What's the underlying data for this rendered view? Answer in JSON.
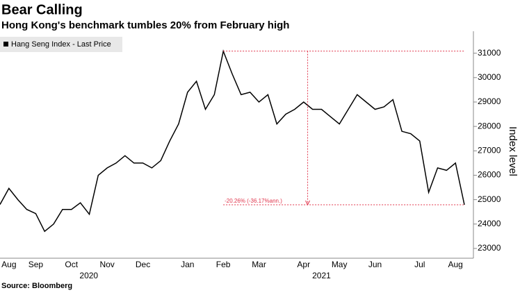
{
  "chart_data": {
    "type": "line",
    "title": "Bear Calling",
    "subtitle": "Hong Kong's benchmark tumbles 20% from February high",
    "y_label": "Index level",
    "source": "Source: Bloomberg",
    "annotation": "-20.26% (-36.17%ann.)",
    "year_labels": [
      "2020",
      "2021"
    ],
    "categories": [
      null,
      "Aug",
      null,
      null,
      "Sep",
      null,
      null,
      null,
      "Oct",
      null,
      null,
      null,
      "Nov",
      null,
      null,
      null,
      "Dec",
      null,
      null,
      null,
      null,
      "Jan",
      null,
      null,
      null,
      "Feb",
      null,
      null,
      null,
      "Mar",
      null,
      null,
      null,
      null,
      "Apr",
      null,
      null,
      null,
      "May",
      null,
      null,
      null,
      "Jun",
      null,
      null,
      null,
      null,
      "Jul",
      null,
      null,
      null,
      "Aug",
      null
    ],
    "series": [
      {
        "name": "Hang Seng Index - Last Price",
        "color": "#000000",
        "values": [
          24800,
          25460,
          25000,
          24600,
          24430,
          23700,
          24000,
          24600,
          24600,
          24870,
          24400,
          26000,
          26300,
          26500,
          26800,
          26500,
          26500,
          26300,
          26600,
          27400,
          28100,
          29400,
          29850,
          28700,
          29300,
          31085,
          30150,
          29300,
          29400,
          29000,
          29300,
          28100,
          28500,
          28700,
          29000,
          28700,
          28700,
          28400,
          28100,
          28700,
          29300,
          29000,
          28700,
          28800,
          29100,
          27800,
          27700,
          27400,
          25300,
          26300,
          26200,
          26500,
          24790
        ]
      }
    ],
    "ylim": [
      22600,
      31900
    ],
    "yticks": [
      23000,
      24000,
      25000,
      26000,
      27000,
      28000,
      29000,
      30000,
      31000
    ],
    "grid": false,
    "annotation_color": "#e0344b"
  }
}
